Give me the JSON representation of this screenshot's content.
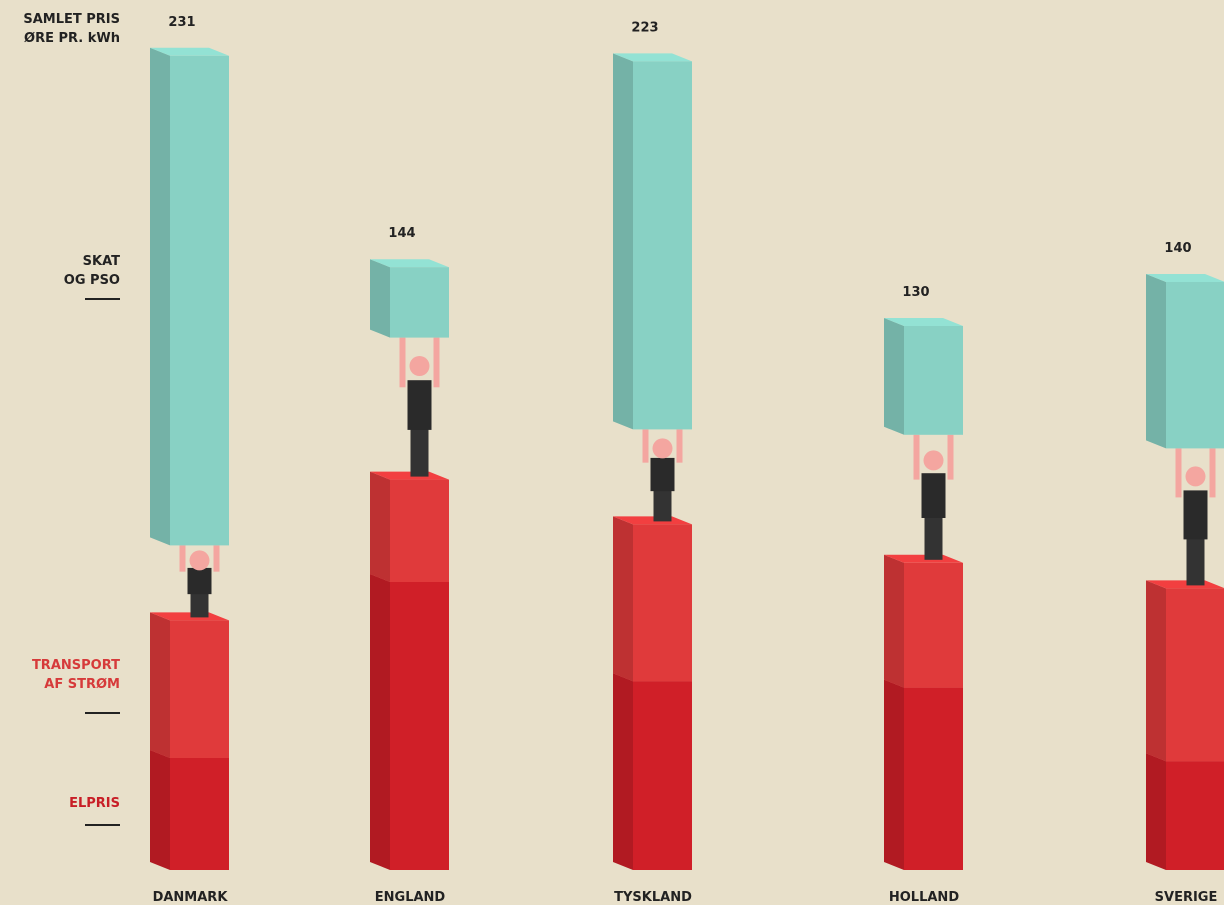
{
  "chart_data": {
    "type": "bar",
    "stacked": true,
    "y_label": "SAMLET PRIS ØRE PR. kWh",
    "categories": [
      "DANMARK",
      "ENGLAND",
      "TYSKLAND",
      "HOLLAND",
      "SVERIGE"
    ],
    "totals": [
      231,
      144,
      223,
      130,
      140
    ],
    "series": [
      {
        "name": "ELPRIS",
        "color": "#d01f28",
        "values": [
          35,
          90,
          59,
          57,
          34
        ]
      },
      {
        "name": "TRANSPORT AF STRØM",
        "color": "#e03a3b",
        "values": [
          43,
          32,
          49,
          39,
          54
        ]
      },
      {
        "name": "SKAT OG PSO",
        "color": "#88d1c4",
        "values": [
          153,
          22,
          115,
          34,
          52
        ]
      }
    ]
  }
}
